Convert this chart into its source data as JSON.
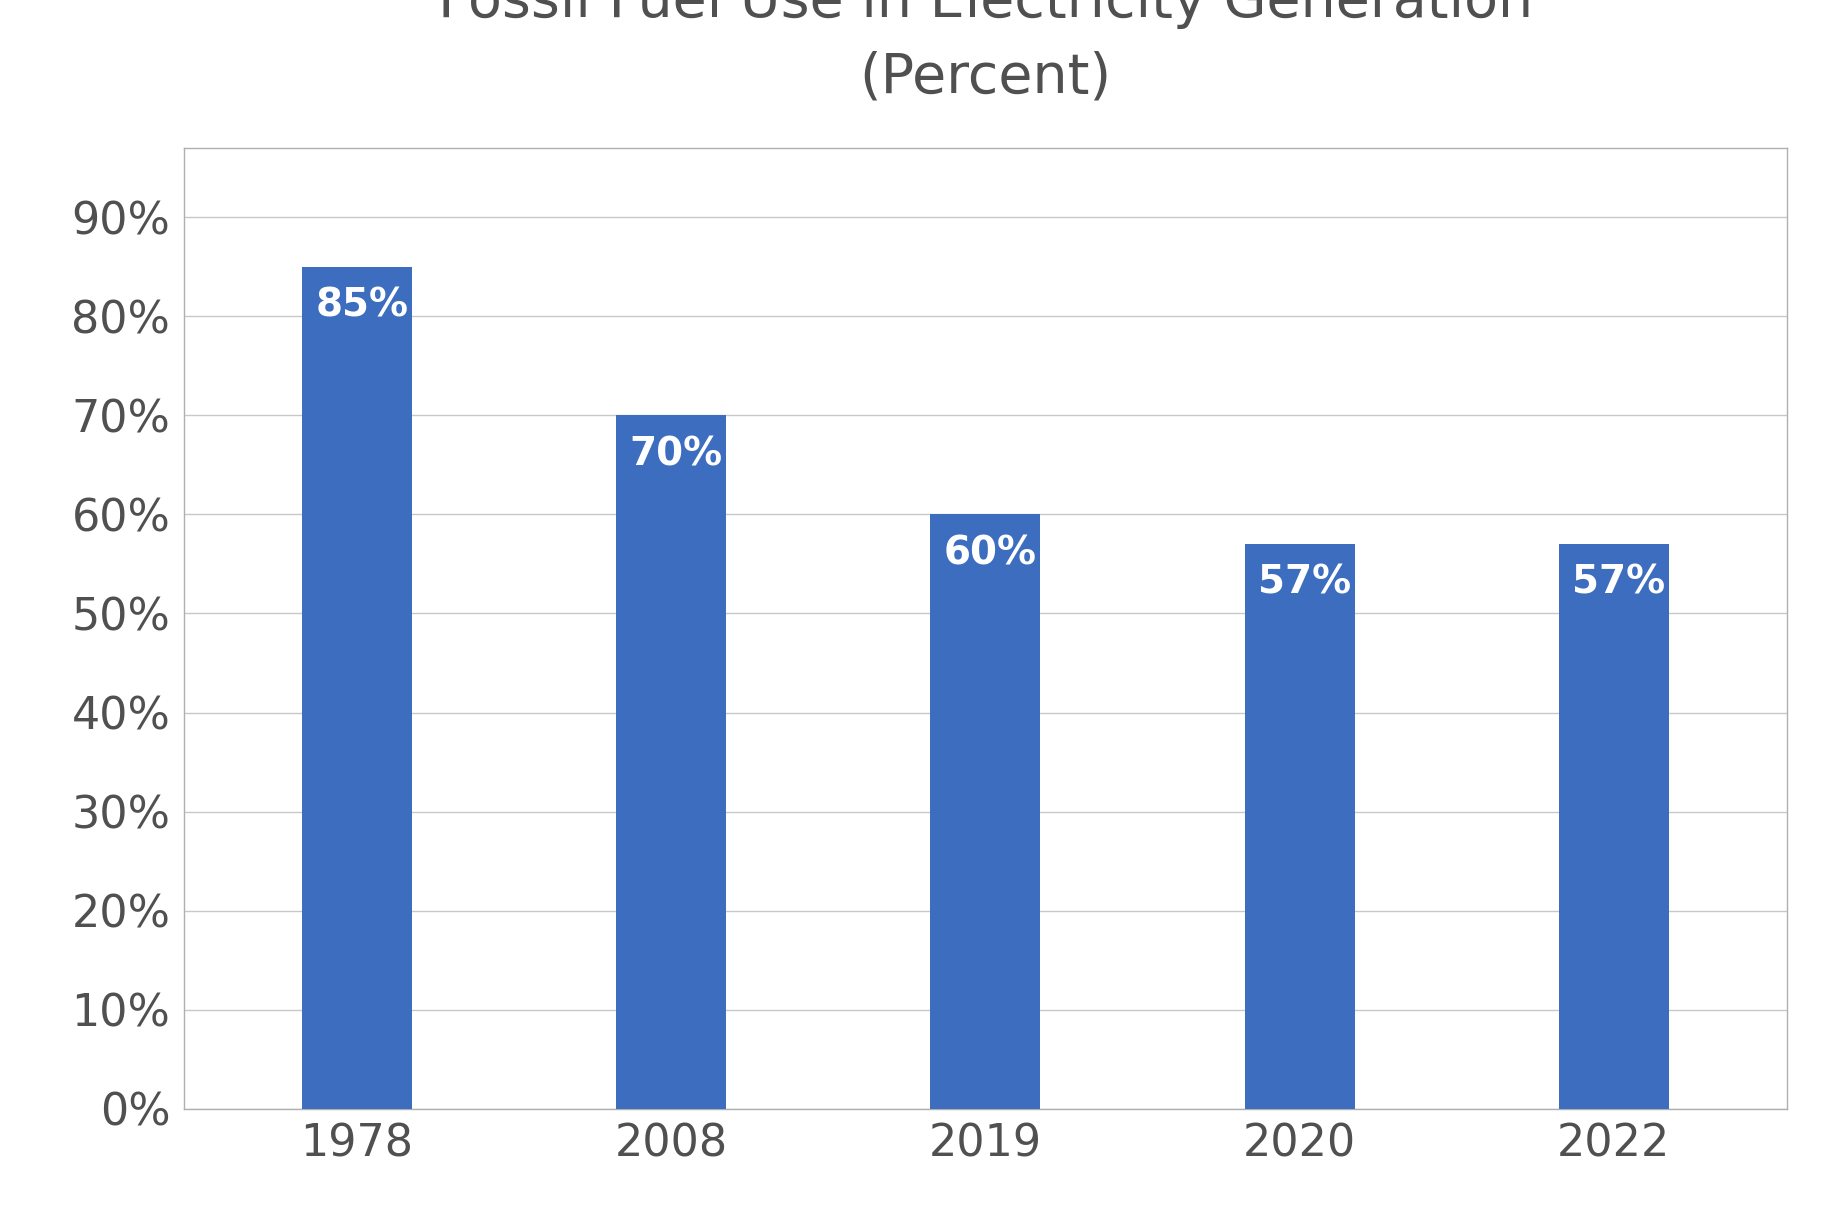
{
  "categories": [
    "1978",
    "2008",
    "2019",
    "2020",
    "2022"
  ],
  "values": [
    85,
    70,
    60,
    57,
    57
  ],
  "labels": [
    "85%",
    "70%",
    "60%",
    "57%",
    "57%"
  ],
  "bar_color": "#3C6DBF",
  "title_line1": "Fossil Fuel Use in Electricity Generation",
  "title_line2": "(Percent)",
  "title_fontsize": 40,
  "label_fontsize": 28,
  "tick_fontsize": 32,
  "ytick_labels": [
    "0%",
    "10%",
    "20%",
    "30%",
    "40%",
    "50%",
    "60%",
    "70%",
    "80%",
    "90%"
  ],
  "ytick_values": [
    0,
    10,
    20,
    30,
    40,
    50,
    60,
    70,
    80,
    90
  ],
  "ylim": [
    0,
    97
  ],
  "bar_width": 0.35,
  "background_color": "#FFFFFF",
  "text_color_bar": "#FFFFFF",
  "axis_label_color": "#505050",
  "grid_color": "#C8C8C8",
  "border_color": "#B0B0B0"
}
